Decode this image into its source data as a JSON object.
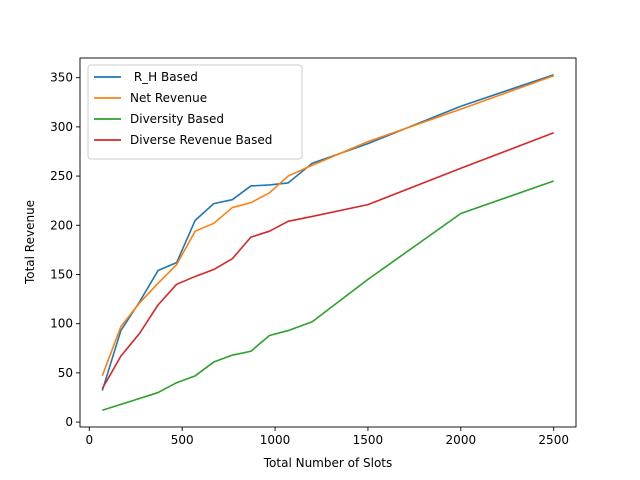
{
  "chart_data": {
    "type": "line",
    "title": "",
    "xlabel": "Total Number of Slots",
    "ylabel": "Total Revenue",
    "xlim": [
      -50,
      2620
    ],
    "ylim": [
      -5,
      370
    ],
    "xticks": [
      0,
      500,
      1000,
      1500,
      2000,
      2500
    ],
    "yticks": [
      0,
      50,
      100,
      150,
      200,
      250,
      300,
      350
    ],
    "grid": false,
    "legend_position": "top-left",
    "series": [
      {
        "name": " R_H Based",
        "color": "#1f77b4",
        "x": [
          70,
          170,
          270,
          370,
          470,
          570,
          670,
          770,
          870,
          970,
          1070,
          1200,
          1500,
          2000,
          2500
        ],
        "y": [
          32,
          93,
          122,
          154,
          162,
          205,
          222,
          226,
          240,
          241,
          243,
          263,
          283,
          321,
          353
        ]
      },
      {
        "name": "Net Revenue",
        "color": "#ff7f0e",
        "x": [
          70,
          170,
          270,
          370,
          470,
          570,
          670,
          770,
          870,
          970,
          1070,
          1200,
          1500,
          2000,
          2500
        ],
        "y": [
          47,
          97,
          121,
          141,
          160,
          194,
          202,
          218,
          223,
          233,
          250,
          261,
          285,
          318,
          352
        ]
      },
      {
        "name": "Diversity Based",
        "color": "#2ca02c",
        "x": [
          70,
          170,
          270,
          370,
          470,
          570,
          670,
          770,
          870,
          970,
          1070,
          1200,
          1500,
          2000,
          2500
        ],
        "y": [
          12,
          18,
          24,
          30,
          40,
          47,
          61,
          68,
          72,
          88,
          93,
          102,
          145,
          212,
          245
        ]
      },
      {
        "name": "Diverse Revenue Based",
        "color": "#d62728",
        "x": [
          70,
          170,
          270,
          370,
          470,
          570,
          670,
          770,
          870,
          970,
          1070,
          1200,
          1500,
          2000,
          2500
        ],
        "y": [
          34,
          67,
          90,
          119,
          140,
          148,
          155,
          166,
          188,
          194,
          204,
          209,
          221,
          258,
          294
        ]
      }
    ]
  }
}
